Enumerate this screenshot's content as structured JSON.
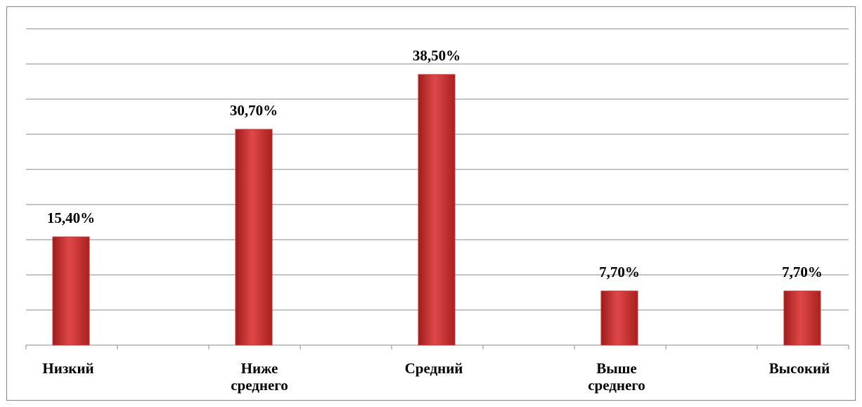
{
  "chart_data": {
    "type": "bar",
    "categories": [
      "Низкий",
      "Ниже\nсреднего",
      "Средний",
      "Выше\nсреднего",
      "Высокий"
    ],
    "values": [
      15.4,
      30.7,
      38.5,
      7.7,
      7.7
    ],
    "value_labels": [
      "15,40%",
      "30,70%",
      "38,50%",
      "7,70%",
      "7,70%"
    ],
    "color": "#c83232",
    "ylim": [
      0,
      45
    ],
    "yticks": [
      0,
      5,
      10,
      15,
      20,
      25,
      30,
      35,
      40,
      45
    ],
    "grid": true
  }
}
